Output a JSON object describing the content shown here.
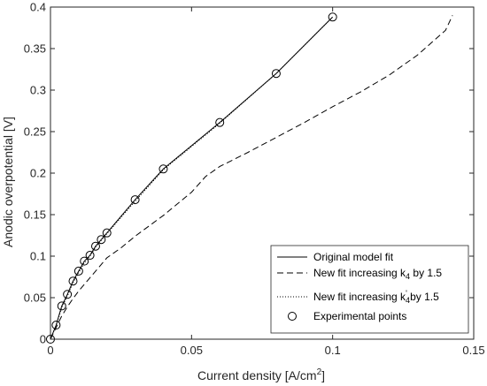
{
  "chart_data": {
    "type": "line",
    "title": "",
    "xlabel": "Current density [A/cm",
    "xlabel_sup": "2",
    "xlabel_end": "]",
    "ylabel": "Anodic overpotential [V]",
    "xlim": [
      0,
      0.15
    ],
    "ylim": [
      0,
      0.4
    ],
    "xticks": [
      0,
      0.05,
      0.1,
      0.15
    ],
    "xtick_labels": [
      "0",
      "0.05",
      "0.1",
      "0.15"
    ],
    "yticks": [
      0,
      0.05,
      0.1,
      0.15,
      0.2,
      0.25,
      0.3,
      0.35,
      0.4
    ],
    "ytick_labels": [
      "0",
      "0.05",
      "0.1",
      "0.15",
      "0.2",
      "0.25",
      "0.3",
      "0.35",
      "0.4"
    ],
    "grid": false,
    "legend_position": "bottom-right",
    "series": [
      {
        "name": "Original model fit",
        "style": "solid",
        "x": [
          0,
          0.002,
          0.004,
          0.006,
          0.008,
          0.01,
          0.012,
          0.014,
          0.016,
          0.018,
          0.02,
          0.03,
          0.04,
          0.06,
          0.08,
          0.1
        ],
        "y": [
          0,
          0.017,
          0.04,
          0.054,
          0.07,
          0.082,
          0.094,
          0.101,
          0.112,
          0.12,
          0.128,
          0.168,
          0.205,
          0.261,
          0.32,
          0.388
        ]
      },
      {
        "name_parts": [
          "New fit increasing k",
          "4",
          " by 1.5"
        ],
        "style": "dashed",
        "x": [
          0,
          0.002,
          0.004,
          0.006,
          0.008,
          0.01,
          0.012,
          0.014,
          0.016,
          0.018,
          0.02,
          0.025,
          0.03,
          0.04,
          0.05,
          0.055,
          0.06,
          0.07,
          0.08,
          0.09,
          0.1,
          0.11,
          0.12,
          0.13,
          0.14,
          0.1425
        ],
        "y": [
          0,
          0.014,
          0.028,
          0.039,
          0.049,
          0.058,
          0.066,
          0.074,
          0.082,
          0.09,
          0.098,
          0.11,
          0.124,
          0.149,
          0.177,
          0.196,
          0.208,
          0.225,
          0.243,
          0.261,
          0.28,
          0.298,
          0.318,
          0.342,
          0.372,
          0.39
        ]
      },
      {
        "name_parts": [
          "New fit increasing k",
          "4",
          "'",
          " by 1.5"
        ],
        "style": "dotted",
        "x": [
          0,
          0.002,
          0.004,
          0.006,
          0.008,
          0.01,
          0.012,
          0.014,
          0.016,
          0.018,
          0.02,
          0.03,
          0.04,
          0.06,
          0.08,
          0.1
        ],
        "y": [
          0,
          0.016,
          0.038,
          0.052,
          0.068,
          0.08,
          0.092,
          0.1,
          0.111,
          0.119,
          0.127,
          0.166,
          0.204,
          0.26,
          0.32,
          0.388
        ]
      },
      {
        "name": "Experimental points",
        "style": "markers",
        "x": [
          0,
          0.002,
          0.004,
          0.006,
          0.008,
          0.01,
          0.012,
          0.014,
          0.016,
          0.018,
          0.02,
          0.03,
          0.04,
          0.06,
          0.08,
          0.1
        ],
        "y": [
          0,
          0.017,
          0.04,
          0.054,
          0.07,
          0.082,
          0.094,
          0.101,
          0.112,
          0.12,
          0.128,
          0.168,
          0.205,
          0.261,
          0.32,
          0.388
        ]
      }
    ],
    "colors": {
      "axis": "#262626",
      "line": "#000000",
      "background": "#ffffff"
    }
  }
}
